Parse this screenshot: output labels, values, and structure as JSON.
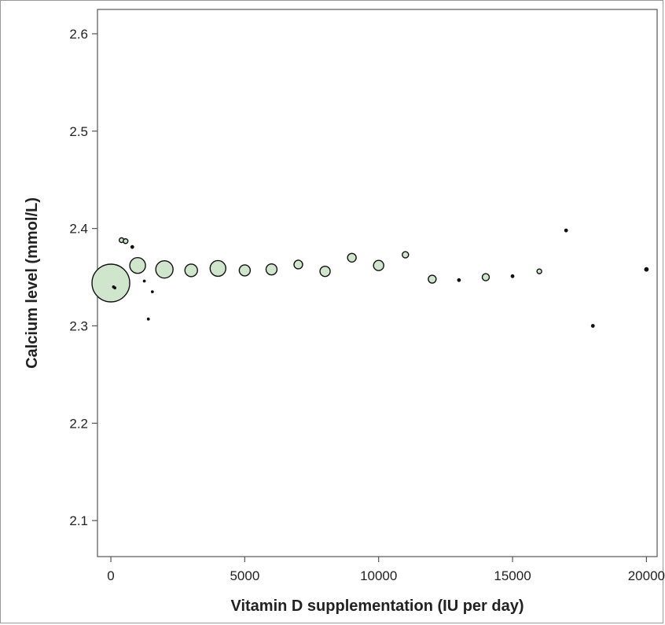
{
  "chart_data": {
    "type": "scatter",
    "title": "",
    "xlabel": "Vitamin D supplementation (IU per day)",
    "ylabel": "Calcium level (mmol/L)",
    "xlim": [
      -500,
      20400
    ],
    "ylim": [
      2.063,
      2.625
    ],
    "xticks": [
      0,
      5000,
      10000,
      15000,
      20000
    ],
    "xtick_labels": [
      "0",
      "5000",
      "10000",
      "15000",
      "20000"
    ],
    "yticks": [
      2.1,
      2.2,
      2.3,
      2.4,
      2.5,
      2.6
    ],
    "ytick_labels": [
      "2.1",
      "2.2",
      "2.3",
      "2.4",
      "2.5",
      "2.6"
    ],
    "grid": false,
    "legend": "none",
    "marker_fill": "#cfe6cc",
    "marker_stroke": "#111111",
    "note": "marker area is proportional to relative weight (sample size)",
    "points": [
      {
        "x": 0,
        "y": 2.344,
        "size": 24
      },
      {
        "x": 100,
        "y": 2.34,
        "size": 1.5
      },
      {
        "x": 150,
        "y": 2.339,
        "size": 1.5
      },
      {
        "x": 400,
        "y": 2.388,
        "size": 3
      },
      {
        "x": 550,
        "y": 2.387,
        "size": 3
      },
      {
        "x": 800,
        "y": 2.381,
        "size": 2
      },
      {
        "x": 1000,
        "y": 2.362,
        "size": 10
      },
      {
        "x": 1250,
        "y": 2.346,
        "size": 1.5
      },
      {
        "x": 1400,
        "y": 2.307,
        "size": 1.5
      },
      {
        "x": 1550,
        "y": 2.335,
        "size": 1.5
      },
      {
        "x": 2000,
        "y": 2.358,
        "size": 11
      },
      {
        "x": 3000,
        "y": 2.357,
        "size": 8
      },
      {
        "x": 4000,
        "y": 2.359,
        "size": 10
      },
      {
        "x": 5000,
        "y": 2.357,
        "size": 7
      },
      {
        "x": 6000,
        "y": 2.358,
        "size": 7
      },
      {
        "x": 7000,
        "y": 2.363,
        "size": 5.5
      },
      {
        "x": 8000,
        "y": 2.356,
        "size": 6.5
      },
      {
        "x": 9000,
        "y": 2.37,
        "size": 5.5
      },
      {
        "x": 10000,
        "y": 2.362,
        "size": 6.5
      },
      {
        "x": 11000,
        "y": 2.373,
        "size": 4
      },
      {
        "x": 12000,
        "y": 2.348,
        "size": 5
      },
      {
        "x": 13000,
        "y": 2.347,
        "size": 2
      },
      {
        "x": 14000,
        "y": 2.35,
        "size": 4.5
      },
      {
        "x": 15000,
        "y": 2.351,
        "size": 2
      },
      {
        "x": 16000,
        "y": 2.356,
        "size": 3
      },
      {
        "x": 17000,
        "y": 2.398,
        "size": 2
      },
      {
        "x": 18000,
        "y": 2.3,
        "size": 2
      },
      {
        "x": 20000,
        "y": 2.358,
        "size": 2.5
      }
    ]
  }
}
